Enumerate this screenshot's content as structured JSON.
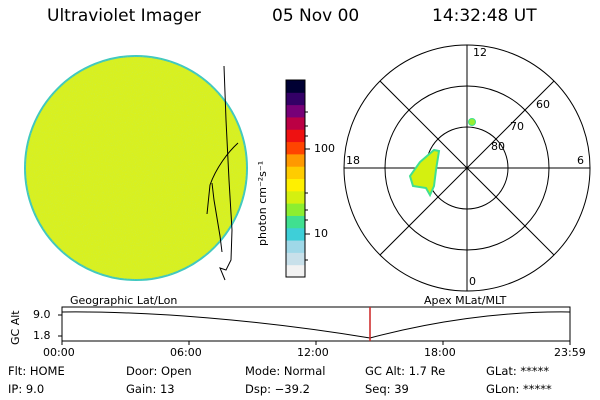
{
  "header": {
    "instrument": "Ultraviolet Imager",
    "date": "05 Nov 00",
    "time": "14:32:48 UT"
  },
  "colorbar": {
    "unit_label": "photon cm⁻²s⁻¹",
    "tick_100": "100",
    "tick_10": "10",
    "colors": [
      "#f2f2f2",
      "#c8e0ea",
      "#9fd8e8",
      "#3ecfd8",
      "#40e090",
      "#8cee30",
      "#d4f010",
      "#fff000",
      "#ffcc00",
      "#ff9900",
      "#ff4400",
      "#ee1111",
      "#bb0044",
      "#770077",
      "#330066",
      "#000033"
    ]
  },
  "polar_plot": {
    "labels": {
      "top": "12",
      "bottom": "0",
      "left": "18",
      "right": "6",
      "lat60": "60",
      "lat70": "70",
      "lat80": "80"
    }
  },
  "projections": {
    "left": "Geographic Lat/Lon",
    "right": "Apex MLat/MLT"
  },
  "altitude_plot": {
    "ylabel": "GC Alt",
    "ytick_top": "9.0",
    "ytick_bottom": "1.8",
    "xticks": [
      "00:00",
      "06:00",
      "12:00",
      "18:00",
      "23:59"
    ],
    "marker_color": "#cc2222"
  },
  "status": {
    "flt": "Flt: HOME",
    "ip": "IP:  9.0",
    "door": "Door: Open",
    "gain": "Gain: 13",
    "mode": "Mode: Normal",
    "dsp": "Dsp:  −39.2",
    "gc_alt": "GC Alt: 1.7 Re",
    "seq": "Seq: 39",
    "glat": "GLat: *****",
    "glon": "GLon: *****"
  }
}
